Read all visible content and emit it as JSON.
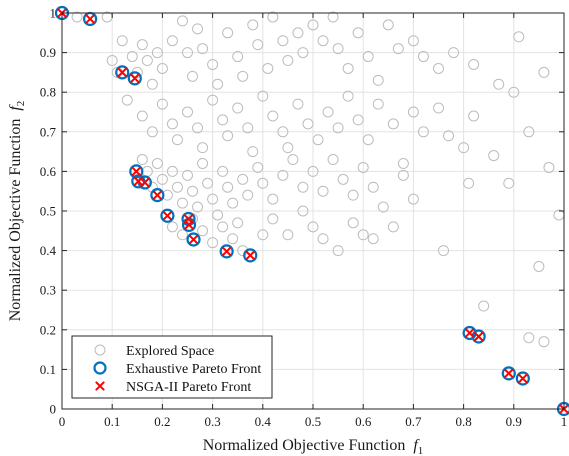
{
  "chart_data": {
    "type": "scatter",
    "xlabel": "Normalized Objective Function",
    "xlabel_sub": "1",
    "ylabel": "Normalized Objective Function",
    "ylabel_sub": "2",
    "xlim": [
      0,
      1
    ],
    "ylim": [
      0,
      1
    ],
    "x_ticks": [
      "0",
      "0.1",
      "0.2",
      "0.3",
      "0.4",
      "0.5",
      "0.6",
      "0.7",
      "0.8",
      "0.9",
      "1"
    ],
    "y_ticks": [
      "0",
      "0.1",
      "0.2",
      "0.3",
      "0.4",
      "0.5",
      "0.6",
      "0.7",
      "0.8",
      "0.9",
      "1"
    ],
    "grid": true,
    "legend_position": "bottom-left",
    "colors": {
      "explored": "#bdbdbd",
      "exhaustive": "#0072bd",
      "nsga": "#ff0000",
      "grid": "#e3e3e3",
      "axis": "#262626"
    },
    "series": [
      {
        "name": "Explored Space",
        "marker": "circle-open",
        "points": [
          [
            0.03,
            0.99
          ],
          [
            0.09,
            0.99
          ],
          [
            0.1,
            0.88
          ],
          [
            0.11,
            0.85
          ],
          [
            0.12,
            0.93
          ],
          [
            0.14,
            0.89
          ],
          [
            0.15,
            0.85
          ],
          [
            0.16,
            0.92
          ],
          [
            0.17,
            0.88
          ],
          [
            0.18,
            0.82
          ],
          [
            0.19,
            0.9
          ],
          [
            0.2,
            0.86
          ],
          [
            0.22,
            0.93
          ],
          [
            0.24,
            0.98
          ],
          [
            0.25,
            0.9
          ],
          [
            0.26,
            0.84
          ],
          [
            0.27,
            0.96
          ],
          [
            0.28,
            0.91
          ],
          [
            0.3,
            0.87
          ],
          [
            0.31,
            0.82
          ],
          [
            0.33,
            0.95
          ],
          [
            0.35,
            0.89
          ],
          [
            0.36,
            0.84
          ],
          [
            0.38,
            0.97
          ],
          [
            0.39,
            0.92
          ],
          [
            0.41,
            0.86
          ],
          [
            0.42,
            0.99
          ],
          [
            0.44,
            0.93
          ],
          [
            0.45,
            0.88
          ],
          [
            0.47,
            0.95
          ],
          [
            0.48,
            0.9
          ],
          [
            0.5,
            0.97
          ],
          [
            0.52,
            0.93
          ],
          [
            0.54,
            0.99
          ],
          [
            0.55,
            0.91
          ],
          [
            0.57,
            0.86
          ],
          [
            0.59,
            0.95
          ],
          [
            0.61,
            0.89
          ],
          [
            0.63,
            0.83
          ],
          [
            0.65,
            0.97
          ],
          [
            0.67,
            0.91
          ],
          [
            0.7,
            0.93
          ],
          [
            0.72,
            0.89
          ],
          [
            0.75,
            0.86
          ],
          [
            0.78,
            0.9
          ],
          [
            0.82,
            0.87
          ],
          [
            0.87,
            0.82
          ],
          [
            0.91,
            0.94
          ],
          [
            0.96,
            0.85
          ],
          [
            0.13,
            0.78
          ],
          [
            0.16,
            0.74
          ],
          [
            0.18,
            0.7
          ],
          [
            0.2,
            0.77
          ],
          [
            0.22,
            0.72
          ],
          [
            0.23,
            0.68
          ],
          [
            0.25,
            0.75
          ],
          [
            0.27,
            0.71
          ],
          [
            0.28,
            0.66
          ],
          [
            0.3,
            0.78
          ],
          [
            0.32,
            0.73
          ],
          [
            0.33,
            0.69
          ],
          [
            0.35,
            0.76
          ],
          [
            0.37,
            0.71
          ],
          [
            0.38,
            0.65
          ],
          [
            0.4,
            0.79
          ],
          [
            0.42,
            0.74
          ],
          [
            0.44,
            0.7
          ],
          [
            0.45,
            0.66
          ],
          [
            0.47,
            0.77
          ],
          [
            0.49,
            0.72
          ],
          [
            0.51,
            0.68
          ],
          [
            0.53,
            0.75
          ],
          [
            0.55,
            0.71
          ],
          [
            0.57,
            0.79
          ],
          [
            0.59,
            0.73
          ],
          [
            0.61,
            0.68
          ],
          [
            0.63,
            0.77
          ],
          [
            0.66,
            0.72
          ],
          [
            0.68,
            0.62
          ],
          [
            0.7,
            0.75
          ],
          [
            0.72,
            0.7
          ],
          [
            0.75,
            0.76
          ],
          [
            0.77,
            0.69
          ],
          [
            0.8,
            0.66
          ],
          [
            0.82,
            0.74
          ],
          [
            0.86,
            0.64
          ],
          [
            0.9,
            0.8
          ],
          [
            0.93,
            0.7
          ],
          [
            0.97,
            0.61
          ],
          [
            0.16,
            0.63
          ],
          [
            0.17,
            0.6
          ],
          [
            0.18,
            0.56
          ],
          [
            0.19,
            0.62
          ],
          [
            0.2,
            0.58
          ],
          [
            0.21,
            0.54
          ],
          [
            0.22,
            0.6
          ],
          [
            0.23,
            0.56
          ],
          [
            0.24,
            0.52
          ],
          [
            0.25,
            0.59
          ],
          [
            0.26,
            0.55
          ],
          [
            0.27,
            0.51
          ],
          [
            0.28,
            0.62
          ],
          [
            0.29,
            0.57
          ],
          [
            0.3,
            0.53
          ],
          [
            0.31,
            0.49
          ],
          [
            0.32,
            0.6
          ],
          [
            0.33,
            0.56
          ],
          [
            0.34,
            0.52
          ],
          [
            0.35,
            0.47
          ],
          [
            0.36,
            0.58
          ],
          [
            0.37,
            0.54
          ],
          [
            0.39,
            0.61
          ],
          [
            0.4,
            0.57
          ],
          [
            0.42,
            0.53
          ],
          [
            0.44,
            0.59
          ],
          [
            0.46,
            0.63
          ],
          [
            0.48,
            0.56
          ],
          [
            0.5,
            0.6
          ],
          [
            0.52,
            0.55
          ],
          [
            0.54,
            0.63
          ],
          [
            0.56,
            0.58
          ],
          [
            0.58,
            0.54
          ],
          [
            0.6,
            0.61
          ],
          [
            0.62,
            0.56
          ],
          [
            0.64,
            0.51
          ],
          [
            0.66,
            0.46
          ],
          [
            0.68,
            0.59
          ],
          [
            0.7,
            0.53
          ],
          [
            0.22,
            0.46
          ],
          [
            0.24,
            0.44
          ],
          [
            0.26,
            0.48
          ],
          [
            0.28,
            0.45
          ],
          [
            0.3,
            0.42
          ],
          [
            0.32,
            0.46
          ],
          [
            0.34,
            0.43
          ],
          [
            0.36,
            0.4
          ],
          [
            0.4,
            0.44
          ],
          [
            0.42,
            0.48
          ],
          [
            0.45,
            0.44
          ],
          [
            0.48,
            0.5
          ],
          [
            0.5,
            0.46
          ],
          [
            0.52,
            0.43
          ],
          [
            0.55,
            0.4
          ],
          [
            0.58,
            0.47
          ],
          [
            0.6,
            0.44
          ],
          [
            0.62,
            0.43
          ],
          [
            0.76,
            0.4
          ],
          [
            0.81,
            0.57
          ],
          [
            0.84,
            0.26
          ],
          [
            0.89,
            0.57
          ],
          [
            0.93,
            0.18
          ],
          [
            0.95,
            0.36
          ],
          [
            0.96,
            0.17
          ],
          [
            0.99,
            0.49
          ]
        ]
      },
      {
        "name": "Exhaustive Pareto Front",
        "marker": "circle-open-thick",
        "points": [
          [
            0.0,
            1.0
          ],
          [
            0.056,
            0.985
          ],
          [
            0.12,
            0.85
          ],
          [
            0.145,
            0.835
          ],
          [
            0.148,
            0.6
          ],
          [
            0.152,
            0.575
          ],
          [
            0.165,
            0.572
          ],
          [
            0.19,
            0.54
          ],
          [
            0.21,
            0.488
          ],
          [
            0.252,
            0.48
          ],
          [
            0.253,
            0.465
          ],
          [
            0.262,
            0.428
          ],
          [
            0.328,
            0.398
          ],
          [
            0.375,
            0.388
          ],
          [
            0.812,
            0.192
          ],
          [
            0.83,
            0.183
          ],
          [
            0.89,
            0.09
          ],
          [
            0.918,
            0.077
          ],
          [
            1.0,
            0.0
          ]
        ]
      },
      {
        "name": "NSGA-II Pareto Front",
        "marker": "x",
        "points": [
          [
            0.0,
            1.0
          ],
          [
            0.056,
            0.985
          ],
          [
            0.12,
            0.85
          ],
          [
            0.145,
            0.835
          ],
          [
            0.148,
            0.6
          ],
          [
            0.152,
            0.575
          ],
          [
            0.165,
            0.572
          ],
          [
            0.19,
            0.54
          ],
          [
            0.21,
            0.488
          ],
          [
            0.252,
            0.48
          ],
          [
            0.253,
            0.465
          ],
          [
            0.262,
            0.428
          ],
          [
            0.328,
            0.398
          ],
          [
            0.375,
            0.388
          ],
          [
            0.812,
            0.192
          ],
          [
            0.83,
            0.183
          ],
          [
            0.89,
            0.09
          ],
          [
            0.918,
            0.077
          ],
          [
            1.0,
            0.0
          ]
        ]
      }
    ]
  }
}
